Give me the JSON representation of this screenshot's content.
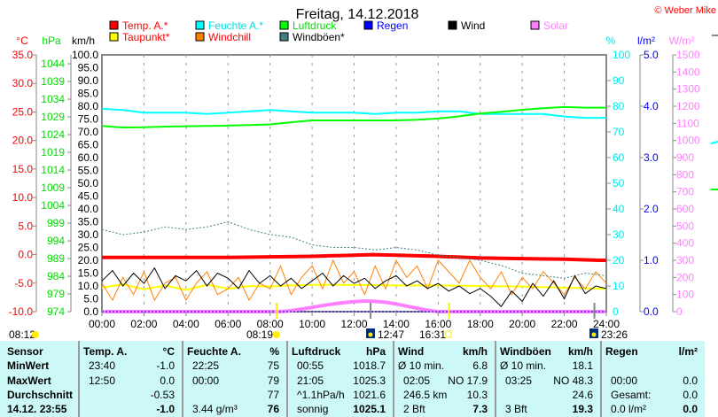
{
  "title": "Freitag, 14.12.2018",
  "copyright": "© Weber Mike",
  "legend": [
    {
      "label": "Temp. A.*",
      "color": "#ff0000",
      "text_color": "#ff0000"
    },
    {
      "label": "Feuchte A.*",
      "color": "#00ffff",
      "text_color": "#00e0e0"
    },
    {
      "label": "Luftdruck",
      "color": "#00ff00",
      "text_color": "#00dd00"
    },
    {
      "label": "Regen",
      "color": "#0000ff",
      "text_color": "#0000ff"
    },
    {
      "label": "Wind",
      "color": "#000000",
      "text_color": "#000000"
    },
    {
      "label": "Solar",
      "color": "#ff80ff",
      "text_color": "#ff80ff"
    },
    {
      "label": "Taupunkt*",
      "color": "#ffff00",
      "text_color": "#ff0000"
    },
    {
      "label": "Windchill",
      "color": "#ff8000",
      "text_color": "#ff0000"
    },
    {
      "label": "Windböen*",
      "color": "#408080",
      "text_color": "#000000"
    }
  ],
  "chart_data": {
    "type": "line",
    "x_unit": "hour",
    "xlim": [
      0,
      24
    ],
    "x_ticks": [
      "00:00",
      "02:00",
      "04:00",
      "06:00",
      "08:00",
      "10:00",
      "12:00",
      "14:00",
      "16:00",
      "18:00",
      "20:00",
      "22:00",
      "24:00"
    ],
    "axes": {
      "temp": {
        "unit": "°C",
        "range": [
          -10,
          35
        ],
        "step": 5,
        "color": "#ff0000"
      },
      "pressure": {
        "unit": "hPa",
        "range": [
          974,
          1044
        ],
        "step": 5,
        "color": "#00dd00"
      },
      "wind": {
        "unit": "km/h",
        "range": [
          0,
          100
        ],
        "step": 5,
        "color": "#000000"
      },
      "humidity": {
        "unit": "%",
        "range": [
          0,
          100
        ],
        "step": 10,
        "color": "#00ffff"
      },
      "rain": {
        "unit": "l/m²",
        "range": [
          0,
          5
        ],
        "step": 1,
        "color": "#0000ff"
      },
      "solar": {
        "unit": "W/m²",
        "range": [
          0,
          1500
        ],
        "step": 100,
        "color": "#ff80ff"
      }
    },
    "grid": "vertical dashed",
    "series": [
      {
        "name": "Feuchte A.*",
        "axis": "humidity",
        "color": "#00ffff",
        "x": [
          0,
          1,
          2,
          3,
          4,
          5,
          6,
          7,
          8,
          9,
          10,
          11,
          12,
          13,
          14,
          15,
          16,
          17,
          18,
          19,
          20,
          21,
          22,
          23,
          24
        ],
        "values": [
          79,
          78.5,
          77.5,
          77.5,
          77.5,
          77,
          77.5,
          78,
          78.5,
          78,
          77.5,
          77.5,
          77.5,
          77,
          77.5,
          77.5,
          78,
          78,
          77,
          77,
          77,
          77,
          76,
          75.5,
          75.5
        ]
      },
      {
        "name": "Luftdruck",
        "axis": "pressure",
        "color": "#00ff00",
        "x": [
          0,
          1,
          2,
          3,
          4,
          5,
          6,
          7,
          8,
          9,
          10,
          11,
          12,
          13,
          14,
          15,
          16,
          17,
          18,
          19,
          20,
          21,
          22,
          23,
          24
        ],
        "values": [
          1019.2,
          1018.7,
          1018.8,
          1019.0,
          1019.1,
          1019.2,
          1019.3,
          1019.5,
          1019.7,
          1020.4,
          1021.0,
          1021.0,
          1021.0,
          1021.0,
          1021.0,
          1021.2,
          1021.6,
          1022.3,
          1023.2,
          1023.8,
          1024.4,
          1024.9,
          1025.3,
          1025.1,
          1025.1
        ]
      },
      {
        "name": "Temp. A.*",
        "axis": "temp",
        "color": "#ff0000",
        "x": [
          0,
          2,
          4,
          6,
          8,
          10,
          12,
          12.83,
          14,
          16,
          18,
          20,
          22,
          23.67,
          24
        ],
        "values": [
          -0.5,
          -0.5,
          -0.5,
          -0.5,
          -0.4,
          -0.3,
          -0.1,
          0.0,
          -0.1,
          -0.3,
          -0.6,
          -0.7,
          -0.8,
          -1.0,
          -1.0
        ]
      },
      {
        "name": "Taupunkt*",
        "axis": "temp",
        "color": "#ffff00",
        "x": [
          0,
          1,
          2,
          3,
          4,
          5,
          6,
          7,
          8,
          9,
          10,
          12,
          14,
          16,
          18,
          20,
          22,
          24
        ],
        "values": [
          -5.8,
          -5.2,
          -6.1,
          -5.4,
          -6.2,
          -5.3,
          -6.0,
          -5.5,
          -5.6,
          -5.4,
          -5.3,
          -5.3,
          -5.4,
          -5.4,
          -5.5,
          -5.6,
          -5.8,
          -6.0
        ]
      },
      {
        "name": "Windchill",
        "axis": "temp",
        "color": "#ff8000",
        "x": [
          0,
          0.5,
          1,
          1.5,
          2,
          2.5,
          3,
          3.5,
          4,
          4.5,
          5,
          5.5,
          6,
          6.5,
          7,
          7.5,
          8,
          8.5,
          9,
          9.5,
          10,
          10.5,
          11,
          11.5,
          12,
          12.5,
          13,
          13.5,
          14,
          14.5,
          15,
          15.5,
          16,
          16.5,
          17,
          17.5,
          18,
          18.5,
          19,
          19.5,
          20,
          20.5,
          21,
          21.5,
          22,
          22.5,
          23,
          23.5,
          24
        ],
        "values": [
          -5,
          -8,
          -4,
          -7,
          -3,
          -8,
          -5,
          -4,
          -8,
          -5,
          -3,
          -7,
          -6,
          -4,
          -8,
          -5,
          -6,
          -2,
          -7,
          -4,
          -2,
          -6,
          -1,
          -5,
          -3,
          -7,
          -2,
          -6,
          -1,
          -4,
          -2,
          -6,
          -1,
          -3,
          -5,
          -1,
          -4,
          -6,
          -3,
          -7,
          -4,
          -6,
          -3,
          -5,
          -7,
          -4,
          -6,
          -3,
          -5
        ]
      },
      {
        "name": "Windböen*",
        "axis": "wind",
        "color": "#408080",
        "x": [
          0,
          1,
          2,
          3,
          4,
          5,
          6,
          7,
          8,
          9,
          10,
          11,
          12,
          13,
          14,
          15,
          16,
          17,
          18,
          19,
          20,
          21,
          22,
          23,
          24
        ],
        "values": [
          32,
          30,
          31,
          33,
          32,
          33,
          35,
          32,
          30,
          29,
          26,
          25,
          25,
          24,
          25,
          24,
          22,
          21,
          20,
          18,
          15,
          14,
          13,
          15,
          14
        ]
      },
      {
        "name": "Wind",
        "axis": "wind",
        "color": "#000000",
        "x": [
          0,
          0.5,
          1,
          1.5,
          2,
          2.5,
          3,
          3.5,
          4,
          4.5,
          5,
          5.5,
          6,
          6.5,
          7,
          7.5,
          8,
          8.5,
          9,
          9.5,
          10,
          10.5,
          11,
          11.5,
          12,
          12.5,
          13,
          13.5,
          14,
          14.5,
          15,
          15.5,
          16,
          16.5,
          17,
          17.5,
          18,
          18.5,
          19,
          19.5,
          20,
          20.5,
          21,
          21.5,
          22,
          22.5,
          23,
          23.5,
          24
        ],
        "values": [
          12,
          16,
          10,
          15,
          11,
          17,
          9,
          14,
          12,
          16,
          10,
          15,
          13,
          9,
          16,
          11,
          14,
          10,
          13,
          9,
          12,
          15,
          10,
          14,
          11,
          13,
          9,
          12,
          14,
          10,
          12,
          9,
          11,
          8,
          10,
          7,
          9,
          6,
          2,
          8,
          4,
          11,
          6,
          12,
          5,
          14,
          7,
          10,
          9
        ]
      },
      {
        "name": "Solar",
        "axis": "solar",
        "color": "#ff80ff",
        "x": [
          0,
          8.5,
          9,
          9.5,
          10,
          10.5,
          11,
          11.5,
          12,
          12.5,
          13,
          13.5,
          14,
          14.5,
          15,
          15.5,
          16,
          24
        ],
        "values": [
          0,
          0,
          5,
          15,
          25,
          35,
          45,
          52,
          58,
          62,
          60,
          55,
          45,
          32,
          20,
          8,
          0,
          0
        ]
      },
      {
        "name": "Regen",
        "axis": "rain",
        "color": "#0000ff",
        "x": [
          0,
          24
        ],
        "values": [
          0,
          0
        ]
      }
    ]
  },
  "astro": [
    {
      "time": "08:12",
      "icon": "sunrise-icon"
    },
    {
      "time": "08:19",
      "icon": "sun-icon"
    },
    {
      "time": "12:47",
      "icon": "moonrise-icon"
    },
    {
      "time": "16:31",
      "icon": "sunset-icon"
    },
    {
      "time": "23:26",
      "icon": "moonset-icon"
    }
  ],
  "table": {
    "sensor": [
      "Sensor",
      "MinWert",
      "MaxWert",
      "Durchschnitt",
      "14.12. 23:55"
    ],
    "columns": [
      {
        "header": "Temp. A.",
        "unit": "°C",
        "left": [
          "23:40",
          "12:50",
          "",
          ""
        ],
        "right": [
          "-1.0",
          "0.0",
          "-0.53",
          "-1.0"
        ]
      },
      {
        "header": "Feuchte A.",
        "unit": "%",
        "left": [
          "22:25",
          "00:00",
          "",
          "3.44 g/m³"
        ],
        "right": [
          "75",
          "79",
          "77",
          "76"
        ]
      },
      {
        "header": "Luftdruck",
        "unit": "hPa",
        "left": [
          "00:55",
          "21:05",
          "^1.1hPa/h",
          "sonnig"
        ],
        "right": [
          "1018.7",
          "1025.3",
          "1021.6",
          "1025.1"
        ]
      },
      {
        "header": "Wind",
        "unit": "km/h",
        "left": [
          "Ø 10 min.",
          "02:05",
          "246.5 km",
          "2 Bft"
        ],
        "right": [
          "6.8",
          "NO 17.9",
          "10.3",
          "7.3"
        ]
      },
      {
        "header": "Windböen",
        "unit": "km/h",
        "left": [
          "Ø 10 min.",
          "03:25",
          "",
          "3 Bft"
        ],
        "right": [
          "18.1",
          "NO 48.3",
          "24.6",
          "19.3"
        ]
      },
      {
        "header": "Regen",
        "unit": "l/m²",
        "left": [
          "",
          "00:00",
          "Gesamt:",
          "0.0 l/m²"
        ],
        "right": [
          "",
          "0.0",
          "0.0",
          "0.0"
        ]
      }
    ]
  }
}
